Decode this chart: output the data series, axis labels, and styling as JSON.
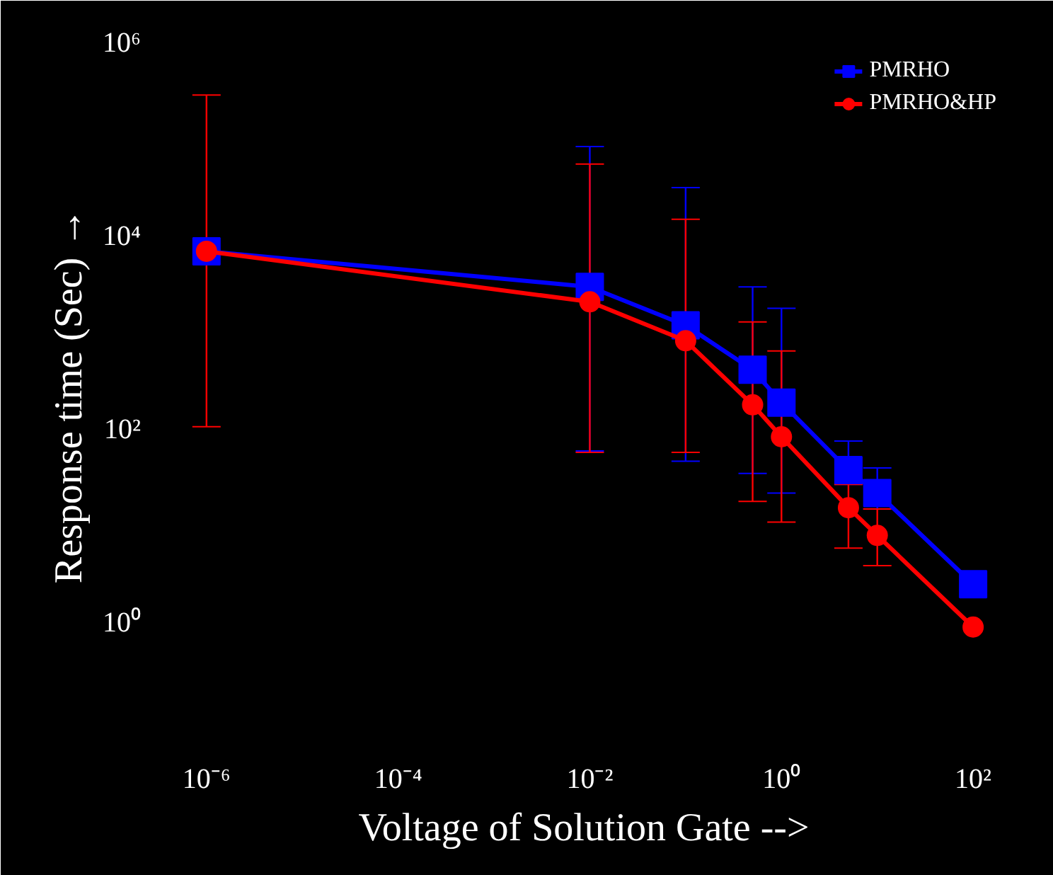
{
  "chart_data": {
    "type": "line",
    "xlabel": "Voltage of Solution Gate -->",
    "ylabel": "Response time (Sec) →",
    "log": "xy",
    "xlim": [
      3e-07,
      250
    ],
    "ylim": [
      0.05,
      1000000
    ],
    "xticks": [
      {
        "value": 1e-06,
        "label": "10⁻⁶"
      },
      {
        "value": 0.0001,
        "label": "10⁻⁴"
      },
      {
        "value": 0.01,
        "label": "10⁻²"
      },
      {
        "value": 1,
        "label": "10⁰"
      },
      {
        "value": 100,
        "label": "10²"
      }
    ],
    "yticks": [
      {
        "value": 1,
        "label": "10⁰"
      },
      {
        "value": 100,
        "label": "10²"
      },
      {
        "value": 10000,
        "label": "10⁴"
      },
      {
        "value": 1000000,
        "label": "10⁶"
      }
    ],
    "x": [
      1e-06,
      0.01,
      0.1,
      0.5,
      1,
      5,
      10,
      100
    ],
    "series": [
      {
        "name": "PMRHO",
        "color": "#0000ff",
        "marker": "square",
        "values": [
          7000,
          3000,
          1200,
          415,
          190,
          38,
          22,
          2.5
        ],
        "errors": [
          null,
          [
            60,
            85000
          ],
          [
            47,
            32000
          ],
          [
            35,
            3000
          ],
          [
            22,
            1800
          ],
          [
            27,
            76
          ],
          [
            15,
            40
          ],
          null
        ]
      },
      {
        "name": "PMRHO&HP",
        "color": "#ff0000",
        "marker": "circle",
        "values": [
          7000,
          2100,
          830,
          180,
          84,
          15.5,
          8,
          0.9
        ],
        "errors": [
          [
            107,
            290000
          ],
          [
            58,
            56000
          ],
          [
            58,
            15000
          ],
          [
            18,
            1300
          ],
          [
            11,
            650
          ],
          [
            5.9,
            27
          ],
          [
            3.9,
            15
          ],
          null
        ]
      }
    ],
    "grid": false,
    "legend": "top right"
  }
}
